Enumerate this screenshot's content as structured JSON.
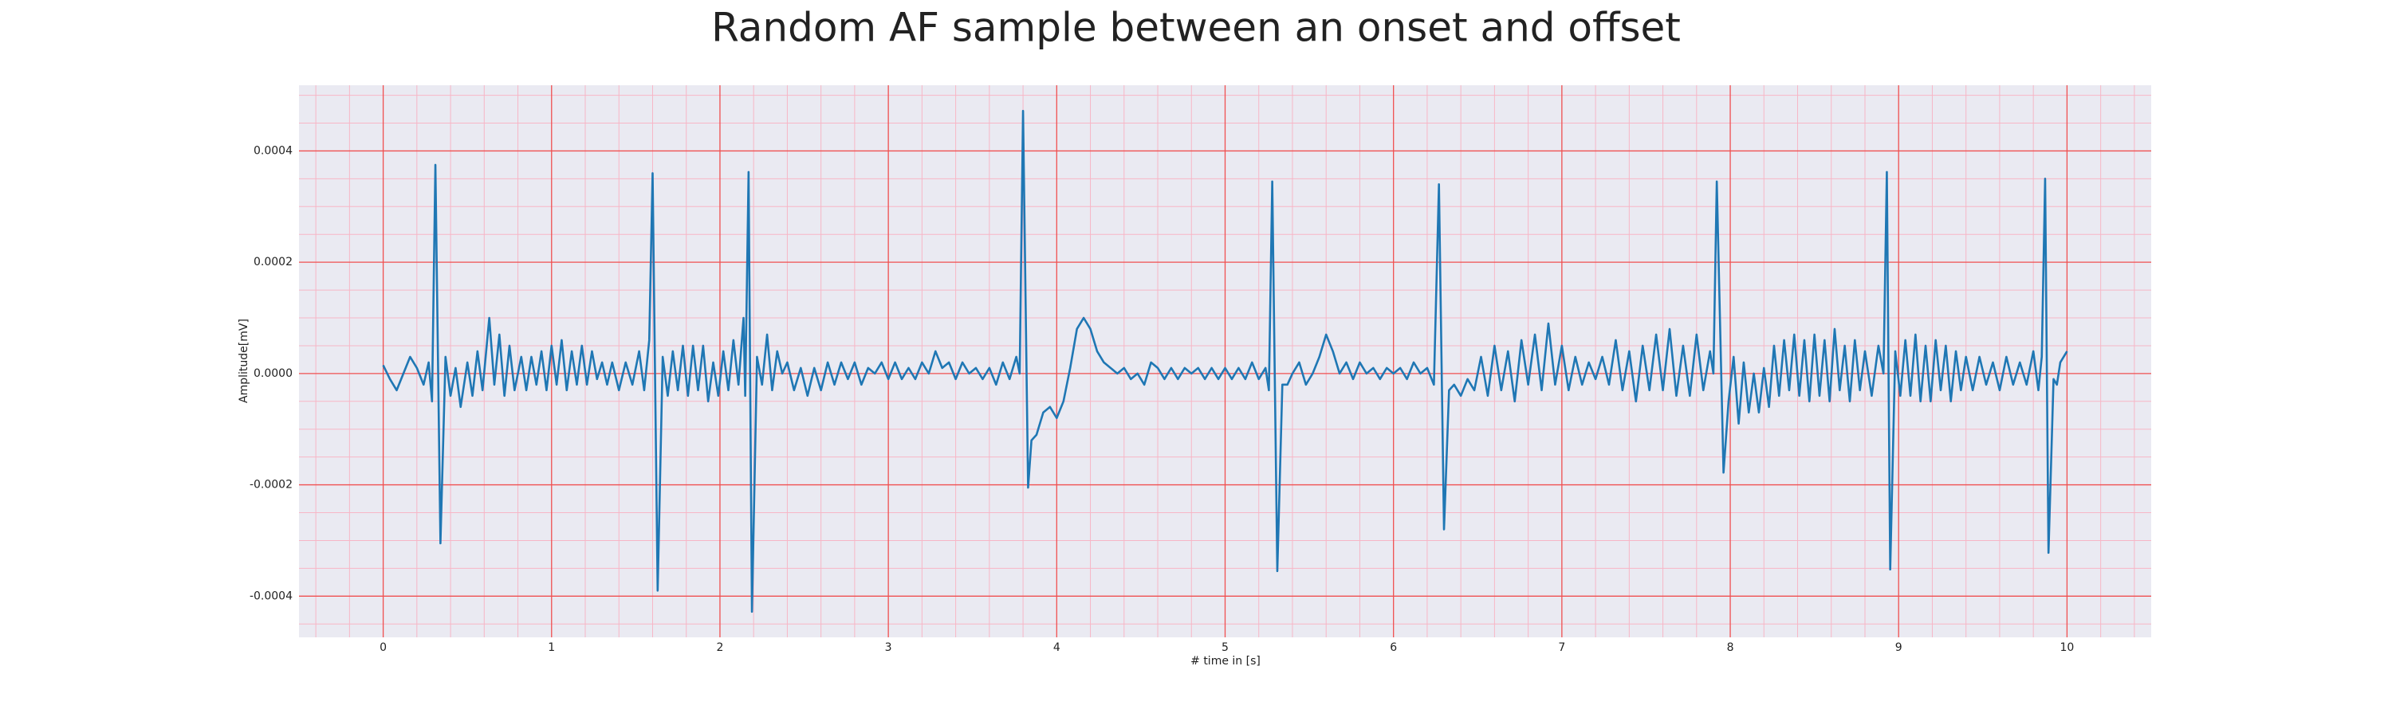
{
  "chart_data": {
    "type": "line",
    "title": "Random AF sample between an onset and offset",
    "xlabel": "# time in [s]",
    "ylabel": "Amplitude[mV]",
    "color": "#1f77b4",
    "grid": true,
    "minor_grid": true,
    "xlim": [
      -0.5,
      10.5
    ],
    "ylim": [
      -0.000474,
      0.000518
    ],
    "xticks": [
      0,
      1,
      2,
      3,
      4,
      5,
      6,
      7,
      8,
      9,
      10
    ],
    "yticks": [
      {
        "value": -0.0004,
        "label": "-0.0004"
      },
      {
        "value": -0.0002,
        "label": "-0.0002"
      },
      {
        "value": 0,
        "label": "0.0000"
      },
      {
        "value": 0.0002,
        "label": "0.0002"
      },
      {
        "value": 0.0004,
        "label": "0.0004"
      }
    ],
    "xticks_minor": [
      -0.4,
      -0.2,
      0.2,
      0.4,
      0.6,
      0.8,
      1.2,
      1.4,
      1.6,
      1.8,
      2.2,
      2.4,
      2.6,
      2.8,
      3.2,
      3.4,
      3.6,
      3.8,
      4.2,
      4.4,
      4.6,
      4.8,
      5.2,
      5.4,
      5.6,
      5.8,
      6.2,
      6.4,
      6.6,
      6.8,
      7.2,
      7.4,
      7.6,
      7.8,
      8.2,
      8.4,
      8.6,
      8.8,
      9.2,
      9.4,
      9.6,
      9.8,
      10.2,
      10.4
    ],
    "yticks_minor": [
      -0.00045,
      -0.00035,
      -0.0003,
      -0.00025,
      -0.00015,
      -0.0001,
      -5e-05,
      5e-05,
      0.0001,
      0.00015,
      0.00025,
      0.0003,
      0.00035,
      0.00045,
      0.0005
    ],
    "x": [
      0.0,
      0.04,
      0.08,
      0.12,
      0.16,
      0.2,
      0.24,
      0.27,
      0.29,
      0.31,
      0.34,
      0.37,
      0.4,
      0.43,
      0.46,
      0.5,
      0.53,
      0.56,
      0.59,
      0.63,
      0.66,
      0.69,
      0.72,
      0.75,
      0.78,
      0.82,
      0.85,
      0.88,
      0.91,
      0.94,
      0.97,
      1.0,
      1.03,
      1.06,
      1.09,
      1.12,
      1.15,
      1.18,
      1.21,
      1.24,
      1.27,
      1.3,
      1.33,
      1.36,
      1.4,
      1.44,
      1.48,
      1.52,
      1.55,
      1.58,
      1.6,
      1.63,
      1.66,
      1.69,
      1.72,
      1.75,
      1.78,
      1.81,
      1.84,
      1.87,
      1.9,
      1.93,
      1.96,
      1.99,
      2.02,
      2.05,
      2.08,
      2.11,
      2.14,
      2.15,
      2.17,
      2.19,
      2.22,
      2.25,
      2.28,
      2.31,
      2.34,
      2.37,
      2.4,
      2.44,
      2.48,
      2.52,
      2.56,
      2.6,
      2.64,
      2.68,
      2.72,
      2.76,
      2.8,
      2.84,
      2.88,
      2.92,
      2.96,
      3.0,
      3.04,
      3.08,
      3.12,
      3.16,
      3.2,
      3.24,
      3.28,
      3.32,
      3.36,
      3.4,
      3.44,
      3.48,
      3.52,
      3.56,
      3.6,
      3.64,
      3.68,
      3.72,
      3.76,
      3.78,
      3.8,
      3.83,
      3.85,
      3.88,
      3.92,
      3.96,
      4.0,
      4.04,
      4.08,
      4.12,
      4.16,
      4.2,
      4.24,
      4.28,
      4.32,
      4.36,
      4.4,
      4.44,
      4.48,
      4.52,
      4.56,
      4.6,
      4.64,
      4.68,
      4.72,
      4.76,
      4.8,
      4.84,
      4.88,
      4.92,
      4.96,
      5.0,
      5.04,
      5.08,
      5.12,
      5.16,
      5.2,
      5.24,
      5.26,
      5.28,
      5.31,
      5.34,
      5.37,
      5.4,
      5.44,
      5.48,
      5.52,
      5.56,
      5.6,
      5.64,
      5.68,
      5.72,
      5.76,
      5.8,
      5.84,
      5.88,
      5.92,
      5.96,
      6.0,
      6.04,
      6.08,
      6.12,
      6.16,
      6.2,
      6.24,
      6.27,
      6.3,
      6.33,
      6.36,
      6.4,
      6.44,
      6.48,
      6.52,
      6.56,
      6.6,
      6.64,
      6.68,
      6.72,
      6.76,
      6.8,
      6.84,
      6.88,
      6.92,
      6.96,
      7.0,
      7.04,
      7.08,
      7.12,
      7.16,
      7.2,
      7.24,
      7.28,
      7.32,
      7.36,
      7.4,
      7.44,
      7.48,
      7.52,
      7.56,
      7.6,
      7.64,
      7.68,
      7.72,
      7.76,
      7.8,
      7.84,
      7.88,
      7.9,
      7.92,
      7.96,
      7.99,
      8.02,
      8.05,
      8.08,
      8.11,
      8.14,
      8.17,
      8.2,
      8.23,
      8.26,
      8.29,
      8.32,
      8.35,
      8.38,
      8.41,
      8.44,
      8.47,
      8.5,
      8.53,
      8.56,
      8.59,
      8.62,
      8.65,
      8.68,
      8.71,
      8.74,
      8.77,
      8.8,
      8.84,
      8.88,
      8.91,
      8.93,
      8.95,
      8.98,
      9.01,
      9.04,
      9.07,
      9.1,
      9.13,
      9.16,
      9.19,
      9.22,
      9.25,
      9.28,
      9.31,
      9.34,
      9.37,
      9.4,
      9.44,
      9.48,
      9.52,
      9.56,
      9.6,
      9.64,
      9.68,
      9.72,
      9.76,
      9.8,
      9.83,
      9.85,
      9.87,
      9.89,
      9.92,
      9.94,
      9.96,
      9.98,
      10.0
    ],
    "values": [
      1.5e-05,
      -1e-05,
      -3e-05,
      0.0,
      3e-05,
      1e-05,
      -2e-05,
      2e-05,
      -5e-05,
      0.000375,
      -0.000305,
      3e-05,
      -4e-05,
      1e-05,
      -6e-05,
      2e-05,
      -4e-05,
      4e-05,
      -3e-05,
      0.0001,
      -2e-05,
      7e-05,
      -4e-05,
      5e-05,
      -3e-05,
      3e-05,
      -3e-05,
      3e-05,
      -2e-05,
      4e-05,
      -3e-05,
      5e-05,
      -2e-05,
      6e-05,
      -3e-05,
      4e-05,
      -2e-05,
      5e-05,
      -2e-05,
      4e-05,
      -1e-05,
      2e-05,
      -2e-05,
      2e-05,
      -3e-05,
      2e-05,
      -2e-05,
      4e-05,
      -3e-05,
      6e-05,
      0.00036,
      -0.00039,
      3e-05,
      -4e-05,
      4e-05,
      -3e-05,
      5e-05,
      -4e-05,
      5e-05,
      -3e-05,
      5e-05,
      -5e-05,
      2e-05,
      -4e-05,
      4e-05,
      -3e-05,
      6e-05,
      -2e-05,
      0.0001,
      -4e-05,
      0.000362,
      -0.000428,
      3e-05,
      -2e-05,
      7e-05,
      -3e-05,
      4e-05,
      0.0,
      2e-05,
      -3e-05,
      1e-05,
      -4e-05,
      1e-05,
      -3e-05,
      2e-05,
      -2e-05,
      2e-05,
      -1e-05,
      2e-05,
      -2e-05,
      1e-05,
      0.0,
      2e-05,
      -1e-05,
      2e-05,
      -1e-05,
      1e-05,
      -1e-05,
      2e-05,
      0.0,
      4e-05,
      1e-05,
      2e-05,
      -1e-05,
      2e-05,
      0.0,
      1e-05,
      -1e-05,
      1e-05,
      -2e-05,
      2e-05,
      -1e-05,
      3e-05,
      0.0,
      0.000472,
      -0.000205,
      -0.00012,
      -0.00011,
      -7e-05,
      -6e-05,
      -8e-05,
      -5e-05,
      1e-05,
      8e-05,
      0.0001,
      8e-05,
      4e-05,
      2e-05,
      1e-05,
      0.0,
      1e-05,
      -1e-05,
      0.0,
      -2e-05,
      2e-05,
      1e-05,
      -1e-05,
      1e-05,
      -1e-05,
      1e-05,
      0.0,
      1e-05,
      -1e-05,
      1e-05,
      -1e-05,
      1e-05,
      -1e-05,
      1e-05,
      -1e-05,
      2e-05,
      -1e-05,
      1e-05,
      -3e-05,
      0.000345,
      -0.000355,
      -2e-05,
      -2e-05,
      0.0,
      2e-05,
      -2e-05,
      0.0,
      3e-05,
      7e-05,
      4e-05,
      0.0,
      2e-05,
      -1e-05,
      2e-05,
      0.0,
      1e-05,
      -1e-05,
      1e-05,
      0.0,
      1e-05,
      -1e-05,
      2e-05,
      0.0,
      1e-05,
      -2e-05,
      0.00034,
      -0.00028,
      -3e-05,
      -2e-05,
      -4e-05,
      -1e-05,
      -3e-05,
      3e-05,
      -4e-05,
      5e-05,
      -3e-05,
      4e-05,
      -5e-05,
      6e-05,
      -2e-05,
      7e-05,
      -3e-05,
      9e-05,
      -2e-05,
      5e-05,
      -3e-05,
      3e-05,
      -2e-05,
      2e-05,
      -1e-05,
      3e-05,
      -2e-05,
      6e-05,
      -3e-05,
      4e-05,
      -5e-05,
      5e-05,
      -3e-05,
      7e-05,
      -3e-05,
      8e-05,
      -4e-05,
      5e-05,
      -4e-05,
      7e-05,
      -3e-05,
      4e-05,
      0.0,
      0.000345,
      -0.000178,
      -5e-05,
      3e-05,
      -9e-05,
      2e-05,
      -7e-05,
      0.0,
      -7e-05,
      1e-05,
      -6e-05,
      5e-05,
      -4e-05,
      6e-05,
      -3e-05,
      7e-05,
      -4e-05,
      6e-05,
      -5e-05,
      7e-05,
      -4e-05,
      6e-05,
      -5e-05,
      8e-05,
      -3e-05,
      5e-05,
      -5e-05,
      6e-05,
      -3e-05,
      4e-05,
      -4e-05,
      5e-05,
      0.0,
      0.000362,
      -0.000352,
      4e-05,
      -4e-05,
      6e-05,
      -4e-05,
      7e-05,
      -5e-05,
      5e-05,
      -5e-05,
      6e-05,
      -3e-05,
      5e-05,
      -5e-05,
      4e-05,
      -3e-05,
      3e-05,
      -3e-05,
      3e-05,
      -2e-05,
      2e-05,
      -3e-05,
      3e-05,
      -2e-05,
      2e-05,
      -2e-05,
      4e-05,
      -3e-05,
      3e-05,
      0.00035,
      -0.000322,
      -1e-05,
      -2e-05,
      2e-05,
      3e-05,
      4e-05
    ]
  }
}
